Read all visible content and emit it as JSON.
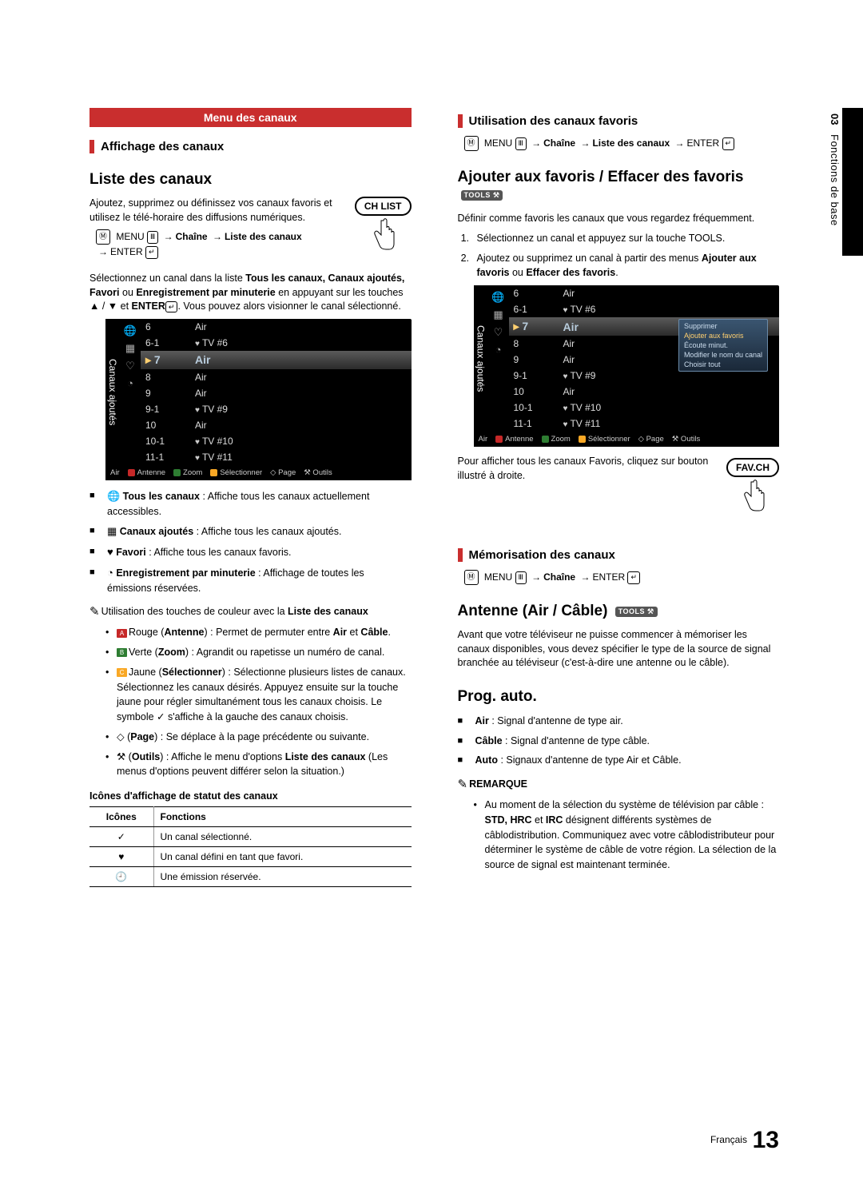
{
  "sidebar": {
    "chapter_num": "03",
    "chapter_title": "Fonctions de base"
  },
  "left": {
    "menu_banner": "Menu des canaux",
    "section1": "Affichage des canaux",
    "heading_liste": "Liste des canaux",
    "intro": "Ajoutez, supprimez ou définissez vos canaux favoris et utilisez le télé-horaire des diffusions numériques.",
    "btn_chlist": "CH LIST",
    "menu_box_label": "MENU",
    "path1_a": "Chaîne",
    "path1_b": "Liste des canaux",
    "enter_label": "ENTER",
    "para_select": "Sélectionnez un canal dans la liste ",
    "para_select_bold1": "Tous les canaux, Canaux ajoutés, Favori",
    "para_select_mid": " ou ",
    "para_select_bold2": "Enregistrement par minuterie",
    "para_select2": " en appuyant sur les touches ▲ / ▼ et ",
    "para_select_bold3": "ENTER",
    "para_select3": ". Vous pouvez alors visionner le canal sélectionné.",
    "shot_label": "Canaux ajoutés",
    "channels": [
      {
        "num": "6",
        "name": "Air",
        "heart": false
      },
      {
        "num": "6-1",
        "name": "TV #6",
        "heart": true
      },
      {
        "num": "7",
        "name": "Air",
        "heart": false,
        "selected": true
      },
      {
        "num": "8",
        "name": "Air",
        "heart": false
      },
      {
        "num": "9",
        "name": "Air",
        "heart": false
      },
      {
        "num": "9-1",
        "name": "TV #9",
        "heart": true
      },
      {
        "num": "10",
        "name": "Air",
        "heart": false
      },
      {
        "num": "10-1",
        "name": "TV #10",
        "heart": true
      },
      {
        "num": "11-1",
        "name": "TV #11",
        "heart": true
      }
    ],
    "footer": {
      "air": "Air",
      "antenne": "Antenne",
      "zoom": "Zoom",
      "select": "Sélectionner",
      "page": "Page",
      "outils": "Outils",
      "colors": {
        "A": "#c62828",
        "B": "#2e7d32",
        "C": "#f9a825",
        "D": "#1565c0",
        "page": "#888",
        "tools": "#888"
      }
    },
    "filters": [
      {
        "icon": "🌐",
        "title": "Tous les canaux",
        "desc": " : Affiche tous les canaux actuellement accessibles."
      },
      {
        "icon": "▦",
        "title": "Canaux ajoutés",
        "desc": " : Affiche tous les canaux ajoutés."
      },
      {
        "icon": "♥",
        "title": "Favori",
        "desc": " : Affiche tous les canaux favoris."
      },
      {
        "icon": "◔",
        "title": "Enregistrement par minuterie",
        "desc": " : Affichage de toutes les émissions réservées."
      }
    ],
    "note_color": "Utilisation des touches de couleur avec la ",
    "note_color_bold": "Liste des canaux",
    "color_items": [
      {
        "letter": "A",
        "color": "#c62828",
        "label": "Rouge",
        "name": "Antenne",
        "desc": " : Permet de permuter entre ",
        "b1": "Air",
        "mid": " et ",
        "b2": "Câble",
        "end": "."
      },
      {
        "letter": "B",
        "color": "#2e7d32",
        "label": "Verte",
        "name": "Zoom",
        "desc": " : Agrandit ou rapetisse un numéro de canal."
      },
      {
        "letter": "C",
        "color": "#f9a825",
        "label": "Jaune",
        "name": "Sélectionner",
        "desc": " : Sélectionne plusieurs listes de canaux. Sélectionnez les canaux désirés. Appuyez ensuite sur la touche jaune pour régler simultanément tous les canaux choisis. Le symbole ✓ s'affiche à la gauche des canaux choisis."
      },
      {
        "symbol": "◇",
        "name": "Page",
        "desc": " : Se déplace à la page précédente ou suivante."
      },
      {
        "symbol": "⚒",
        "name": "Outils",
        "desc": " : Affiche le menu d'options ",
        "b1": "Liste des canaux",
        "end": " (Les menus d'options peuvent différer selon la situation.)"
      }
    ],
    "icons_table_title": "Icônes d'affichage de statut des canaux",
    "icons_table": {
      "h1": "Icônes",
      "h2": "Fonctions",
      "rows": [
        {
          "icon": "✓",
          "txt": "Un canal sélectionné."
        },
        {
          "icon": "♥",
          "txt": "Un canal défini en tant que favori."
        },
        {
          "icon": "🕘",
          "txt": "Une émission réservée."
        }
      ]
    }
  },
  "right": {
    "section2": "Utilisation des canaux favoris",
    "path2_a": "Chaîne",
    "path2_b": "Liste des canaux",
    "heading_fav": "Ajouter aux favoris / Effacer des favoris",
    "tools_badge": "TOOLS ⚒",
    "fav_intro": "Définir comme favoris les canaux que vous regardez fréquemment.",
    "fav_step1": "Sélectionnez un canal et appuyez sur la touche TOOLS.",
    "fav_step2a": "Ajoutez ou supprimez un canal à partir des menus ",
    "fav_step2b": "Ajouter aux favoris",
    "fav_step2c": " ou ",
    "fav_step2d": "Effacer des favoris",
    "fav_step2e": ".",
    "context_items": [
      "Supprimer",
      "Ajouter aux favoris",
      "Écoute minut.",
      "Modifier le nom du canal",
      "Choisir tout"
    ],
    "fav_note1": "Pour afficher tous les canaux Favoris, cliquez sur bouton illustré à droite.",
    "btn_favch": "FAV.CH",
    "section3": "Mémorisation des canaux",
    "path3_a": "Chaîne",
    "heading_antenne": "Antenne (Air / Câble)",
    "antenne_para": "Avant que votre téléviseur ne puisse commencer à mémoriser les canaux disponibles, vous devez spécifier le type de la source de signal branchée au téléviseur (c'est-à-dire une antenne ou le câble).",
    "heading_prog": "Prog. auto.",
    "prog_items": [
      {
        "b": "Air",
        "t": " : Signal d'antenne de type air."
      },
      {
        "b": "Câble",
        "t": " : Signal d'antenne de type câble."
      },
      {
        "b": "Auto",
        "t": " : Signaux d'antenne de type Air et Câble."
      }
    ],
    "remarque_label": "REMARQUE",
    "remarque": "Au moment de la sélection du système de télévision par câble : ",
    "remarque_bold": "STD, HRC",
    "remarque_mid": " et ",
    "remarque_bold2": "IRC",
    "remarque_end": " désignent différents systèmes de câblodistribution. Communiquez avec votre câblodistributeur pour déterminer le système de câble de votre région. La sélection de la source de signal est maintenant terminée."
  },
  "footer": {
    "lang": "Français",
    "page": "13"
  }
}
